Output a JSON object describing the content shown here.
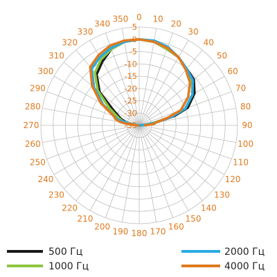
{
  "chart_data": {
    "type": "polar",
    "angle_ticks": [
      "0",
      "10",
      "20",
      "30",
      "40",
      "50",
      "60",
      "70",
      "80",
      "90",
      "100",
      "110",
      "120",
      "130",
      "140",
      "150",
      "160",
      "170",
      "180",
      "190",
      "200",
      "210",
      "220",
      "230",
      "240",
      "250",
      "260",
      "270",
      "280",
      "290",
      "300",
      "310",
      "320",
      "330",
      "340",
      "350"
    ],
    "radial_ticks": [
      "5",
      "0",
      "-5",
      "-10",
      "-15",
      "-20",
      "-25",
      "-30",
      "-35"
    ],
    "rlim": [
      -35,
      5
    ],
    "grid": true,
    "legend_position": "bottom",
    "series": [
      {
        "name": "500 Гц",
        "color": "#1a1a1a",
        "points": [
          [
            -90,
            -35
          ],
          [
            -85,
            -34
          ],
          [
            -80,
            -30
          ],
          [
            -75,
            -29
          ],
          [
            -70,
            -27
          ],
          [
            -60,
            -23
          ],
          [
            -50,
            -14
          ],
          [
            -40,
            -8
          ],
          [
            -30,
            -5
          ],
          [
            -20,
            -2
          ],
          [
            -10,
            -0.5
          ],
          [
            0,
            0
          ],
          [
            10,
            -0.5
          ],
          [
            20,
            -2
          ],
          [
            30,
            -3
          ],
          [
            40,
            -5
          ],
          [
            50,
            -6
          ],
          [
            60,
            -9
          ],
          [
            70,
            -14
          ],
          [
            75,
            -20
          ],
          [
            80,
            -28
          ],
          [
            85,
            -33
          ],
          [
            90,
            -35
          ]
        ]
      },
      {
        "name": "1000 Гц",
        "color": "#8dc63f",
        "points": [
          [
            -90,
            -35
          ],
          [
            -85,
            -34
          ],
          [
            -80,
            -31
          ],
          [
            -75,
            -28
          ],
          [
            -70,
            -26
          ],
          [
            -60,
            -21
          ],
          [
            -50,
            -13
          ],
          [
            -40,
            -7
          ],
          [
            -30,
            -4
          ],
          [
            -20,
            -2
          ],
          [
            -10,
            -0.5
          ],
          [
            0,
            0
          ],
          [
            10,
            -0.5
          ],
          [
            20,
            -2
          ],
          [
            30,
            -3
          ],
          [
            40,
            -5
          ],
          [
            50,
            -7
          ],
          [
            60,
            -10
          ],
          [
            70,
            -15
          ],
          [
            75,
            -22
          ],
          [
            80,
            -29
          ],
          [
            85,
            -33
          ],
          [
            90,
            -34
          ]
        ]
      },
      {
        "name": "2000 Гц",
        "color": "#29abe2",
        "points": [
          [
            -90,
            -35
          ],
          [
            -85,
            -35
          ],
          [
            -80,
            -31
          ],
          [
            -75,
            -26
          ],
          [
            -70,
            -24
          ],
          [
            -60,
            -18
          ],
          [
            -50,
            -11
          ],
          [
            -40,
            -5
          ],
          [
            -30,
            -3
          ],
          [
            -20,
            -1.5
          ],
          [
            -10,
            -0.5
          ],
          [
            0,
            0
          ],
          [
            10,
            0
          ],
          [
            20,
            -1
          ],
          [
            30,
            -3
          ],
          [
            40,
            -5
          ],
          [
            50,
            -6.5
          ],
          [
            60,
            -10
          ],
          [
            70,
            -15
          ],
          [
            75,
            -21
          ],
          [
            80,
            -28
          ],
          [
            85,
            -32
          ],
          [
            90,
            -35
          ]
        ]
      },
      {
        "name": "4000 Гц",
        "color": "#e07a1f",
        "points": [
          [
            -90,
            -35
          ],
          [
            -85,
            -31
          ],
          [
            -80,
            -27
          ],
          [
            -75,
            -25
          ],
          [
            -70,
            -24
          ],
          [
            -60,
            -17
          ],
          [
            -50,
            -10
          ],
          [
            -40,
            -4
          ],
          [
            -30,
            -2
          ],
          [
            -20,
            -0.5
          ],
          [
            -10,
            0
          ],
          [
            0,
            0
          ],
          [
            10,
            -0.5
          ],
          [
            20,
            -1.5
          ],
          [
            30,
            -3
          ],
          [
            40,
            -5.5
          ],
          [
            50,
            -8
          ],
          [
            60,
            -12
          ],
          [
            70,
            -17
          ],
          [
            75,
            -23
          ],
          [
            80,
            -28
          ],
          [
            85,
            -29
          ],
          [
            90,
            -33
          ]
        ]
      }
    ]
  },
  "legend": {
    "items": [
      "500 Гц",
      "1000 Гц",
      "2000 Гц",
      "4000 Гц"
    ],
    "colors": [
      "#1a1a1a",
      "#8dc63f",
      "#29abe2",
      "#e07a1f"
    ]
  }
}
